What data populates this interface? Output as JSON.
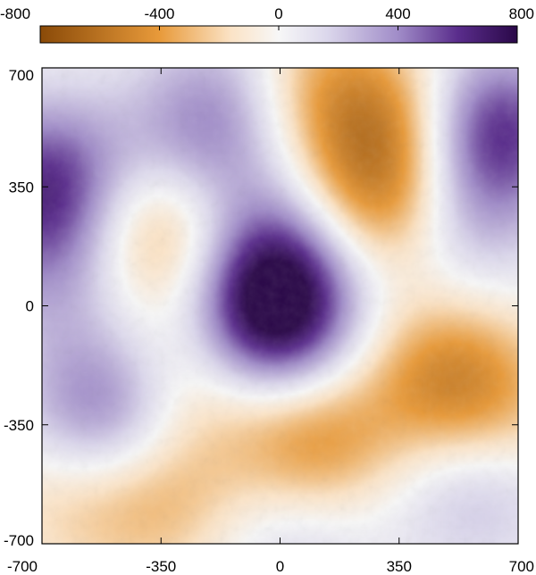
{
  "chart_data": {
    "type": "heatmap",
    "title": "",
    "xlabel": "",
    "ylabel": "",
    "xlim": [
      -700,
      700
    ],
    "ylim": [
      -700,
      700
    ],
    "x_ticks": [
      -700,
      -350,
      0,
      350,
      700
    ],
    "y_ticks": [
      -700,
      -350,
      0,
      350,
      700
    ],
    "x_tick_labels": [
      "-700",
      "-350",
      "0",
      "350",
      "700"
    ],
    "y_tick_labels": [
      "-700",
      "-350",
      "0",
      "350",
      "700"
    ],
    "colorbar": {
      "location": "top",
      "range": [
        -800,
        800
      ],
      "ticks": [
        -800,
        -400,
        0,
        400,
        800
      ],
      "tick_labels": [
        "-800",
        "-400",
        "0",
        "400",
        "800"
      ],
      "colors": {
        "-800": "#8a4a08",
        "-400": "#e89a3a",
        "-160": "#fbe3c6",
        "0": "#f7f7f7",
        "160": "#dcd8ec",
        "400": "#a08cc8",
        "600": "#5a2d8c",
        "800": "#2a0848"
      }
    },
    "field_features": [
      {
        "x": -30,
        "y": -60,
        "value": 760,
        "sign": "positive"
      },
      {
        "x": 0,
        "y": 140,
        "value": 520,
        "sign": "positive"
      },
      {
        "x": 620,
        "y": 520,
        "value": 640,
        "sign": "positive"
      },
      {
        "x": -680,
        "y": 360,
        "value": 600,
        "sign": "positive"
      },
      {
        "x": -510,
        "y": -310,
        "value": 520,
        "sign": "positive"
      },
      {
        "x": -230,
        "y": 470,
        "value": 360,
        "sign": "positive"
      },
      {
        "x": 580,
        "y": -520,
        "value": 300,
        "sign": "positive"
      },
      {
        "x": 520,
        "y": 250,
        "value": 300,
        "sign": "positive"
      },
      {
        "x": -130,
        "y": 660,
        "value": 220,
        "sign": "positive"
      },
      {
        "x": 50,
        "y": -650,
        "value": 230,
        "sign": "positive"
      },
      {
        "x": -650,
        "y": 100,
        "value": 260,
        "sign": "positive"
      },
      {
        "x": 300,
        "y": 300,
        "value": -520,
        "sign": "negative"
      },
      {
        "x": 320,
        "y": 540,
        "value": -420,
        "sign": "negative"
      },
      {
        "x": -350,
        "y": 220,
        "value": -460,
        "sign": "negative"
      },
      {
        "x": 90,
        "y": -410,
        "value": -500,
        "sign": "negative"
      },
      {
        "x": 480,
        "y": -210,
        "value": -420,
        "sign": "negative"
      },
      {
        "x": -250,
        "y": -200,
        "value": -300,
        "sign": "negative"
      },
      {
        "x": -350,
        "y": -560,
        "value": -300,
        "sign": "negative"
      },
      {
        "x": -620,
        "y": -560,
        "value": -200,
        "sign": "negative"
      },
      {
        "x": 80,
        "y": 660,
        "value": -300,
        "sign": "negative"
      },
      {
        "x": 640,
        "y": -320,
        "value": -250,
        "sign": "negative"
      }
    ]
  }
}
